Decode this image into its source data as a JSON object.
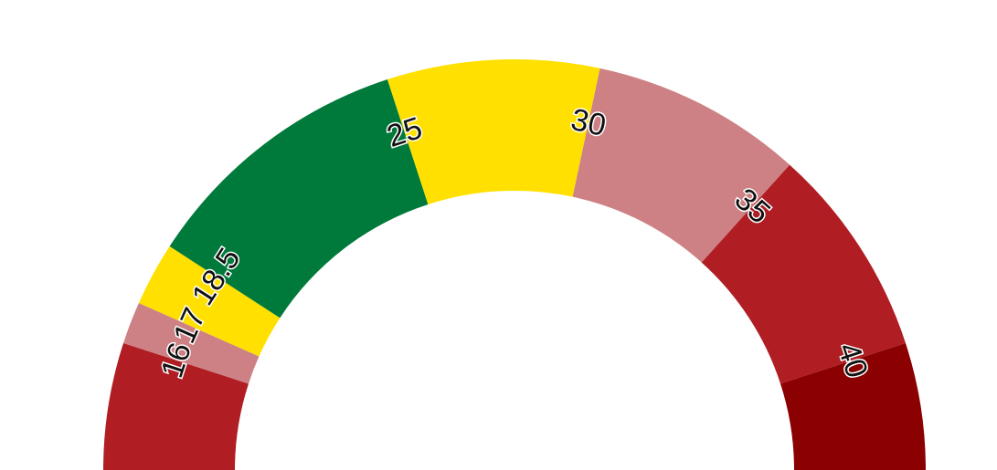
{
  "chart_data": {
    "type": "gauge",
    "scale": [
      13,
      43
    ],
    "bands": [
      {
        "from": 13,
        "to": 16,
        "color": "#B01E24"
      },
      {
        "from": 16,
        "to": 17,
        "color": "#CD8184"
      },
      {
        "from": 17,
        "to": 18.5,
        "color": "#FFE000"
      },
      {
        "from": 18.5,
        "to": 25,
        "color": "#007A3A"
      },
      {
        "from": 25,
        "to": 30,
        "color": "#FFE000"
      },
      {
        "from": 30,
        "to": 35,
        "color": "#CD8184"
      },
      {
        "from": 35,
        "to": 40,
        "color": "#B01E24"
      },
      {
        "from": 40,
        "to": 43,
        "color": "#8B0000"
      }
    ],
    "ticks": [
      {
        "value": 16,
        "label": "16"
      },
      {
        "value": 17,
        "label": "17"
      },
      {
        "value": 18.5,
        "label": "18.5"
      },
      {
        "value": 25,
        "label": "25"
      },
      {
        "value": 30,
        "label": "30"
      },
      {
        "value": 35,
        "label": "35"
      },
      {
        "value": 40,
        "label": "40"
      }
    ]
  }
}
